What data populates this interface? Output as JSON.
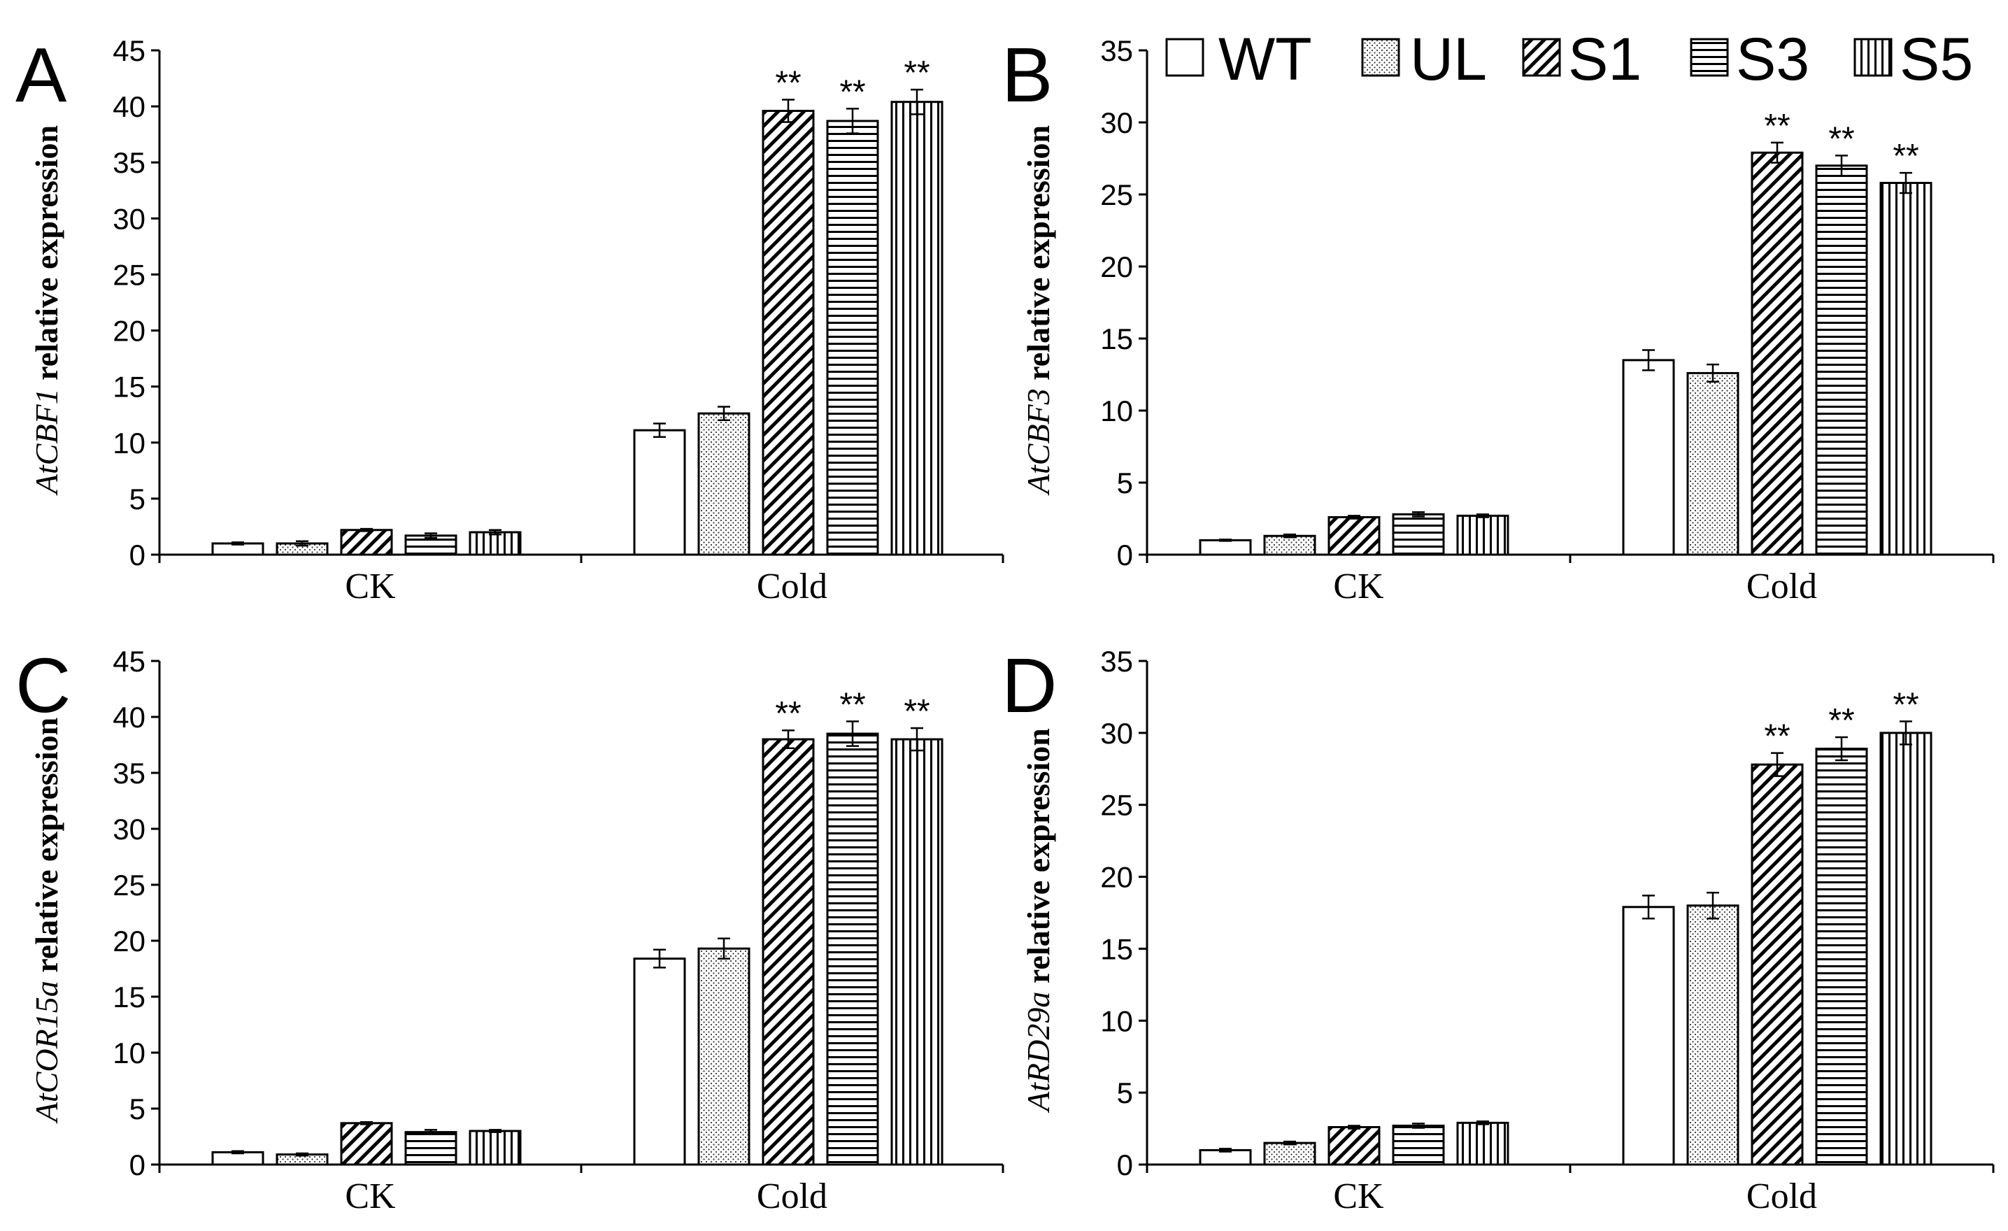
{
  "legend": {
    "entries": [
      {
        "name": "WT",
        "pattern": "none"
      },
      {
        "name": "UL",
        "pattern": "dots"
      },
      {
        "name": "S1",
        "pattern": "diagonal"
      },
      {
        "name": "S3",
        "pattern": "horizontal"
      },
      {
        "name": "S5",
        "pattern": "vertical"
      }
    ]
  },
  "chart_data": [
    {
      "panel": "A",
      "type": "bar",
      "ylabel_gene": "AtCBF1",
      "ylabel_rest": " relative expression",
      "categories": [
        "CK",
        "Cold"
      ],
      "ylim": [
        0,
        45
      ],
      "yticks": [
        0,
        5,
        10,
        15,
        20,
        25,
        30,
        35,
        40,
        45
      ],
      "series": [
        {
          "name": "WT",
          "values": [
            1.0,
            11.1
          ],
          "errors": [
            0.1,
            0.6
          ],
          "sig": [
            "",
            ""
          ]
        },
        {
          "name": "UL",
          "values": [
            1.0,
            12.6
          ],
          "errors": [
            0.2,
            0.6
          ],
          "sig": [
            "",
            ""
          ]
        },
        {
          "name": "S1",
          "values": [
            2.2,
            39.6
          ],
          "errors": [
            0.1,
            1.0
          ],
          "sig": [
            "",
            "**"
          ]
        },
        {
          "name": "S3",
          "values": [
            1.7,
            38.7
          ],
          "errors": [
            0.2,
            1.1
          ],
          "sig": [
            "",
            "**"
          ]
        },
        {
          "name": "S5",
          "values": [
            2.0,
            40.4
          ],
          "errors": [
            0.2,
            1.1
          ],
          "sig": [
            "",
            "**"
          ]
        }
      ]
    },
    {
      "panel": "B",
      "type": "bar",
      "ylabel_gene": "AtCBF3",
      "ylabel_rest": " relative expression",
      "categories": [
        "CK",
        "Cold"
      ],
      "ylim": [
        0,
        35
      ],
      "yticks": [
        0,
        5,
        10,
        15,
        20,
        25,
        30,
        35
      ],
      "series": [
        {
          "name": "WT",
          "values": [
            1.0,
            13.5
          ],
          "errors": [
            0.05,
            0.7
          ],
          "sig": [
            "",
            ""
          ]
        },
        {
          "name": "UL",
          "values": [
            1.3,
            12.6
          ],
          "errors": [
            0.1,
            0.6
          ],
          "sig": [
            "",
            ""
          ]
        },
        {
          "name": "S1",
          "values": [
            2.6,
            27.9
          ],
          "errors": [
            0.1,
            0.7
          ],
          "sig": [
            "",
            "**"
          ]
        },
        {
          "name": "S3",
          "values": [
            2.8,
            27.0
          ],
          "errors": [
            0.15,
            0.7
          ],
          "sig": [
            "",
            "**"
          ]
        },
        {
          "name": "S5",
          "values": [
            2.7,
            25.8
          ],
          "errors": [
            0.1,
            0.7
          ],
          "sig": [
            "",
            "**"
          ]
        }
      ]
    },
    {
      "panel": "C",
      "type": "bar",
      "ylabel_gene": "AtCOR15a",
      "ylabel_rest": " relative expression",
      "categories": [
        "CK",
        "Cold"
      ],
      "ylim": [
        0,
        45
      ],
      "yticks": [
        0,
        5,
        10,
        15,
        20,
        25,
        30,
        35,
        40,
        45
      ],
      "series": [
        {
          "name": "WT",
          "values": [
            1.1,
            18.4
          ],
          "errors": [
            0.1,
            0.8
          ],
          "sig": [
            "",
            ""
          ]
        },
        {
          "name": "UL",
          "values": [
            0.9,
            19.3
          ],
          "errors": [
            0.1,
            0.9
          ],
          "sig": [
            "",
            ""
          ]
        },
        {
          "name": "S1",
          "values": [
            3.7,
            38.0
          ],
          "errors": [
            0.1,
            0.8
          ],
          "sig": [
            "",
            "**"
          ]
        },
        {
          "name": "S3",
          "values": [
            2.9,
            38.5
          ],
          "errors": [
            0.2,
            1.1
          ],
          "sig": [
            "",
            "**"
          ]
        },
        {
          "name": "S5",
          "values": [
            3.0,
            38.0
          ],
          "errors": [
            0.1,
            1.0
          ],
          "sig": [
            "",
            "**"
          ]
        }
      ]
    },
    {
      "panel": "D",
      "type": "bar",
      "ylabel_gene": "AtRD29a",
      "ylabel_rest": " relative expression",
      "categories": [
        "CK",
        "Cold"
      ],
      "ylim": [
        0,
        35
      ],
      "yticks": [
        0,
        5,
        10,
        15,
        20,
        25,
        30,
        35
      ],
      "series": [
        {
          "name": "WT",
          "values": [
            1.0,
            17.9
          ],
          "errors": [
            0.1,
            0.8
          ],
          "sig": [
            "",
            ""
          ]
        },
        {
          "name": "UL",
          "values": [
            1.5,
            18.0
          ],
          "errors": [
            0.1,
            0.9
          ],
          "sig": [
            "",
            ""
          ]
        },
        {
          "name": "S1",
          "values": [
            2.6,
            27.8
          ],
          "errors": [
            0.1,
            0.8
          ],
          "sig": [
            "",
            "**"
          ]
        },
        {
          "name": "S3",
          "values": [
            2.7,
            28.9
          ],
          "errors": [
            0.15,
            0.8
          ],
          "sig": [
            "",
            "**"
          ]
        },
        {
          "name": "S5",
          "values": [
            2.9,
            30.0
          ],
          "errors": [
            0.1,
            0.8
          ],
          "sig": [
            "",
            "**"
          ]
        }
      ]
    }
  ]
}
